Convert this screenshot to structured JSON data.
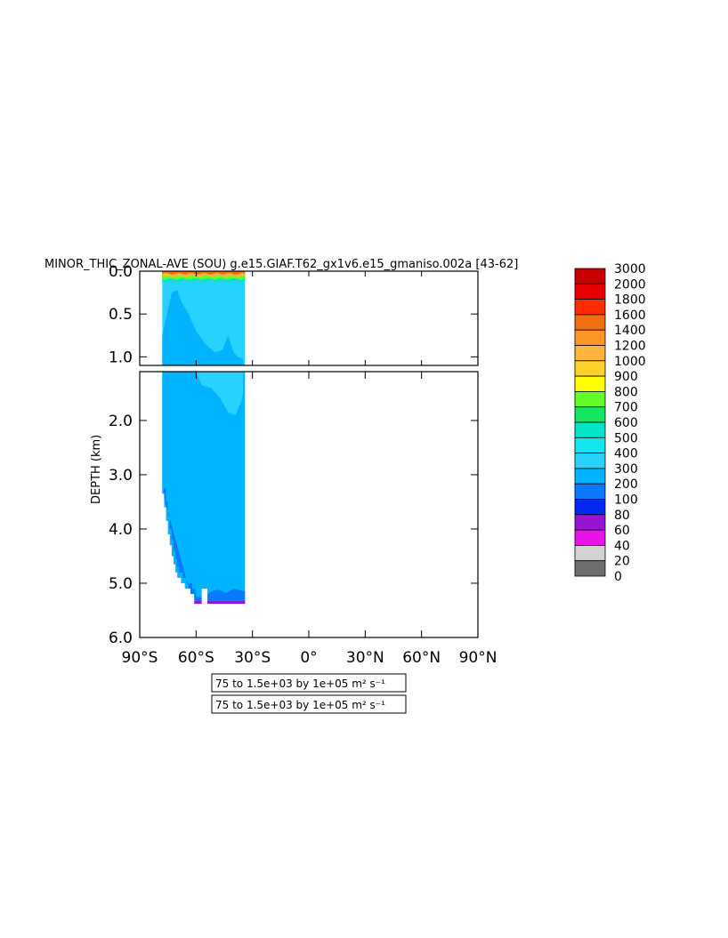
{
  "title": "MINOR_THIC_ZONAL-AVE (SOU) g.e15.GIAF.T62_gx1v6.e15_gmaniso.002a [43-62]",
  "chart_data": {
    "type": "heatmap",
    "title": "MINOR_THIC_ZONAL-AVE (SOU) g.e15.GIAF.T62_gx1v6.e15_gmaniso.002a [43-62]",
    "ylabel": "DEPTH (km)",
    "xlabel": "",
    "x_range": [
      -90,
      90
    ],
    "y_range_upper": [
      0.0,
      1.1
    ],
    "y_range_lower": [
      1.1,
      6.0
    ],
    "x_ticks": [
      "90°S",
      "60°S",
      "30°S",
      "0°",
      "30°N",
      "60°N",
      "90°N"
    ],
    "y_ticks_upper": [
      "0.0",
      "0.5",
      "1.0"
    ],
    "y_ticks_lower": [
      "2.0",
      "3.0",
      "4.0",
      "5.0",
      "6.0"
    ],
    "contour_info": [
      "75 to 1.5e+03 by 1e+05 m² s⁻¹",
      "75 to 1.5e+03 by 1e+05 m² s⁻¹"
    ],
    "colorbar": {
      "levels": [
        "3000",
        "2000",
        "1800",
        "1600",
        "1400",
        "1200",
        "1000",
        "900",
        "800",
        "700",
        "600",
        "500",
        "400",
        "300",
        "200",
        "100",
        "80",
        "60",
        "40",
        "20",
        "0"
      ],
      "colors": [
        "#c80000",
        "#e60000",
        "#ff2a00",
        "#f07010",
        "#ff9428",
        "#ffb43c",
        "#ffd228",
        "#ffff00",
        "#64ff28",
        "#14e664",
        "#00e6c8",
        "#14e6f0",
        "#28d2ff",
        "#00b4ff",
        "#0a78ff",
        "#0028f0",
        "#9614d2",
        "#e614e6",
        "#d2d2d2",
        "#6e6e6e"
      ]
    },
    "field": {
      "x_extent": [
        -78,
        -34
      ],
      "surface_band": [
        {
          "depth_top": 0.0,
          "depth_bottom": 0.03,
          "value": 1400
        },
        {
          "depth_top": 0.03,
          "depth_bottom": 0.06,
          "value": 1000
        },
        {
          "depth_top": 0.06,
          "depth_bottom": 0.09,
          "value": 700
        },
        {
          "depth_top": 0.09,
          "depth_bottom": 0.12,
          "value": 500
        }
      ],
      "regions": [
        {
          "name": "upper-cyan",
          "value": 300
        },
        {
          "name": "deep-blue",
          "value": 200
        },
        {
          "name": "bottom-edge",
          "value": 100
        },
        {
          "name": "bottom-floor",
          "value": 60
        }
      ]
    }
  }
}
